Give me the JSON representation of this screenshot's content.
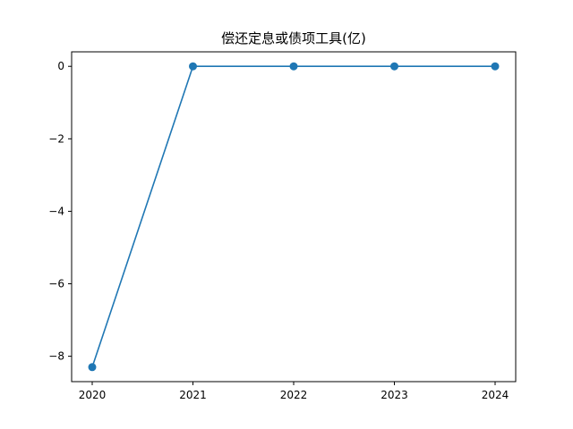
{
  "chart_data": {
    "type": "line",
    "title": "偿还定息或债项工具(亿)",
    "xlabel": "",
    "ylabel": "",
    "categories": [
      "2020",
      "2021",
      "2022",
      "2023",
      "2024"
    ],
    "series": [
      {
        "values": [
          -8.3,
          0,
          0,
          0,
          0
        ]
      }
    ],
    "ylim": [
      -8.7,
      0.4
    ],
    "yticks": [
      0,
      -2,
      -4,
      -6,
      -8
    ],
    "ytick_labels": [
      "0",
      "−2",
      "−4",
      "−6",
      "−8"
    ],
    "grid": false,
    "colors": {
      "line": "#1f77b4",
      "marker": "#1f77b4"
    }
  }
}
